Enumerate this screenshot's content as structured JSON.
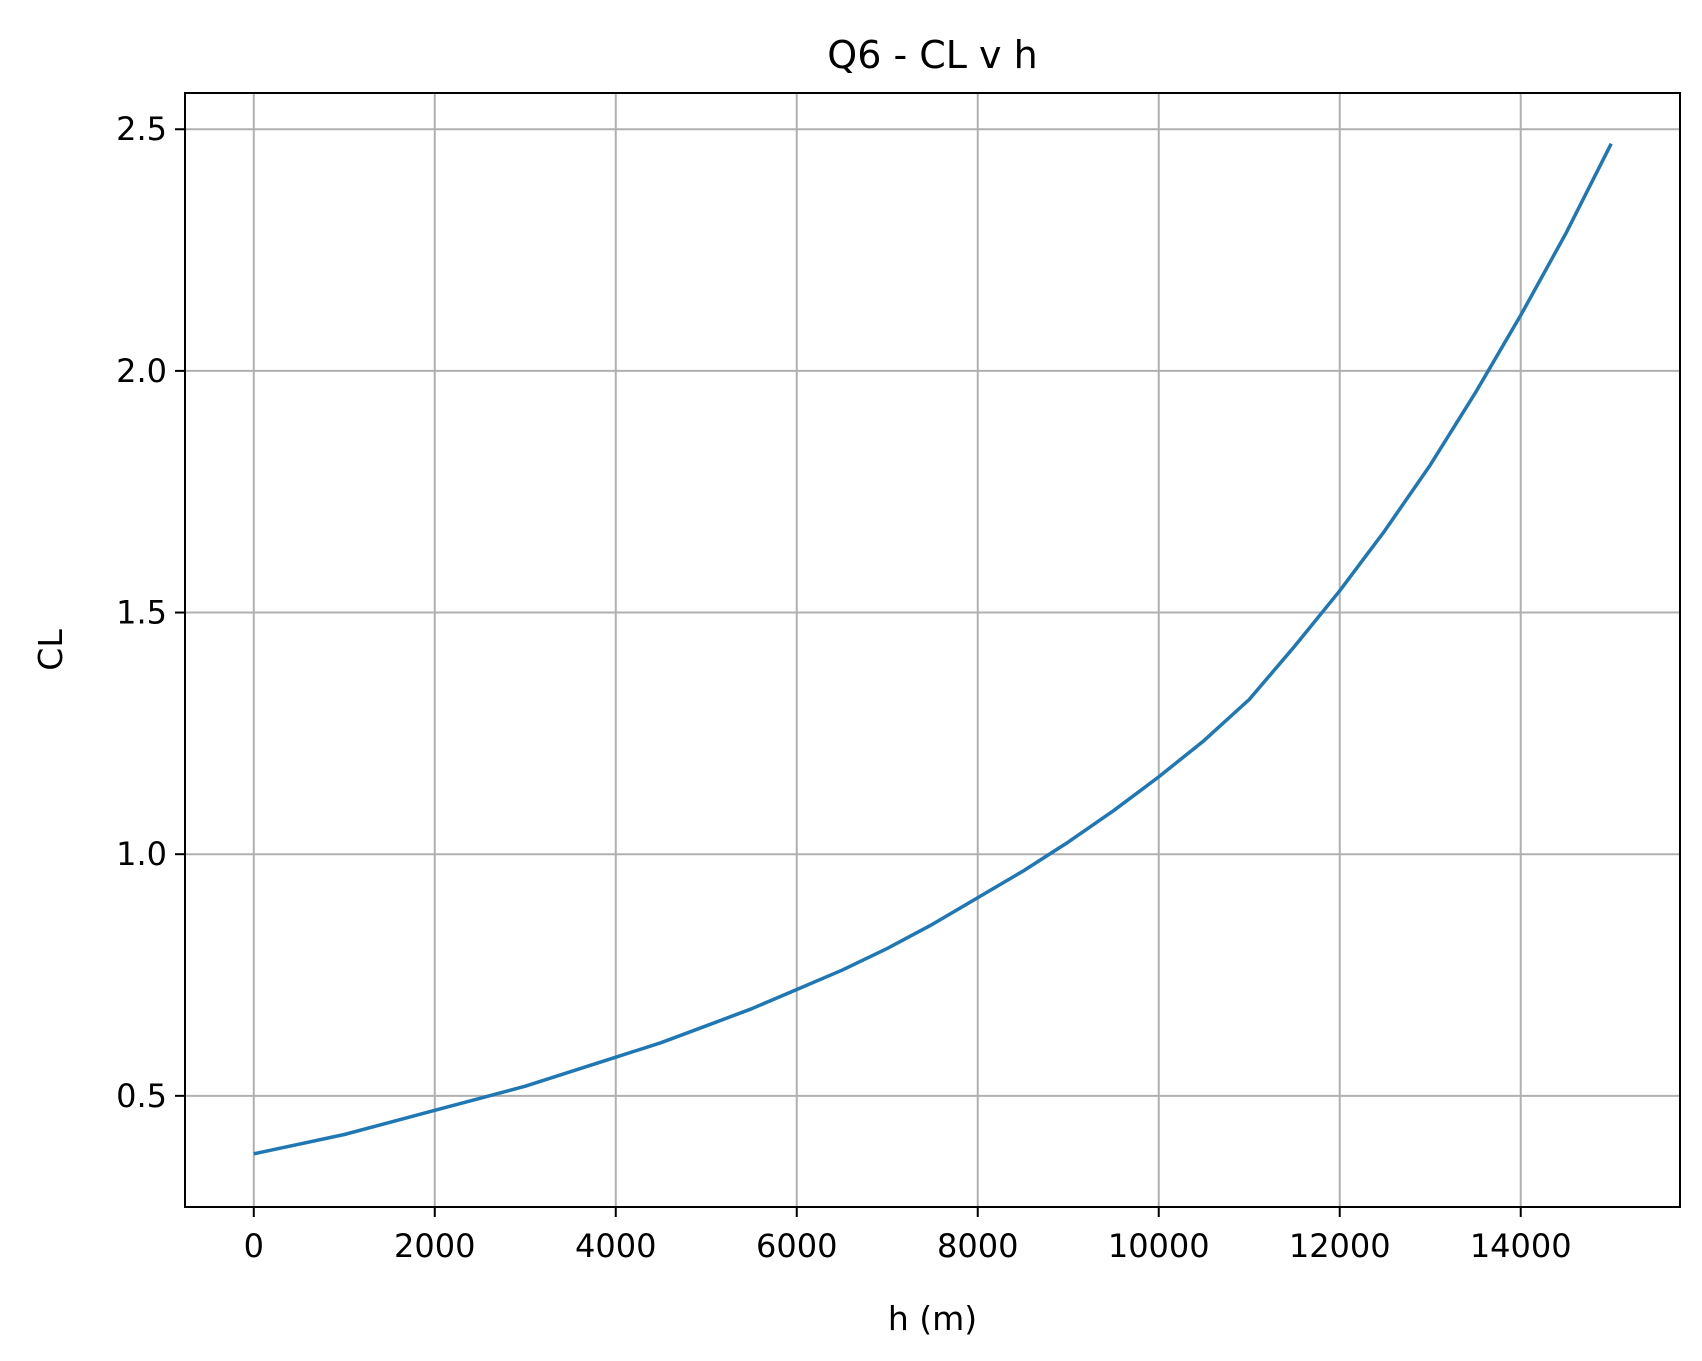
{
  "chart_data": {
    "type": "line",
    "title": "Q6 - CL v h",
    "xlabel": "h (m)",
    "ylabel": "CL",
    "xlim": [
      -760,
      15760
    ],
    "ylim": [
      0.27,
      2.575
    ],
    "xticks": [
      0,
      2000,
      4000,
      6000,
      8000,
      10000,
      12000,
      14000
    ],
    "xtick_labels": [
      "0",
      "2000",
      "4000",
      "6000",
      "8000",
      "10000",
      "12000",
      "14000"
    ],
    "yticks": [
      0.5,
      1.0,
      1.5,
      2.0,
      2.5
    ],
    "ytick_labels": [
      "0.5",
      "1.0",
      "1.5",
      "2.0",
      "2.5"
    ],
    "grid": true,
    "series": [
      {
        "color": "#1f77b4",
        "x": [
          0,
          500,
          1000,
          1500,
          2000,
          2500,
          3000,
          3500,
          4000,
          4500,
          5000,
          5500,
          6000,
          6500,
          7000,
          7500,
          8000,
          8500,
          9000,
          9500,
          10000,
          10500,
          11000,
          11500,
          12000,
          12500,
          13000,
          13500,
          14000,
          14500,
          15000
        ],
        "y": [
          0.38,
          0.4,
          0.42,
          0.445,
          0.47,
          0.495,
          0.52,
          0.55,
          0.58,
          0.61,
          0.645,
          0.68,
          0.72,
          0.76,
          0.805,
          0.855,
          0.91,
          0.965,
          1.025,
          1.09,
          1.16,
          1.235,
          1.32,
          1.43,
          1.545,
          1.67,
          1.805,
          1.955,
          2.115,
          2.285,
          2.47
        ]
      }
    ]
  }
}
